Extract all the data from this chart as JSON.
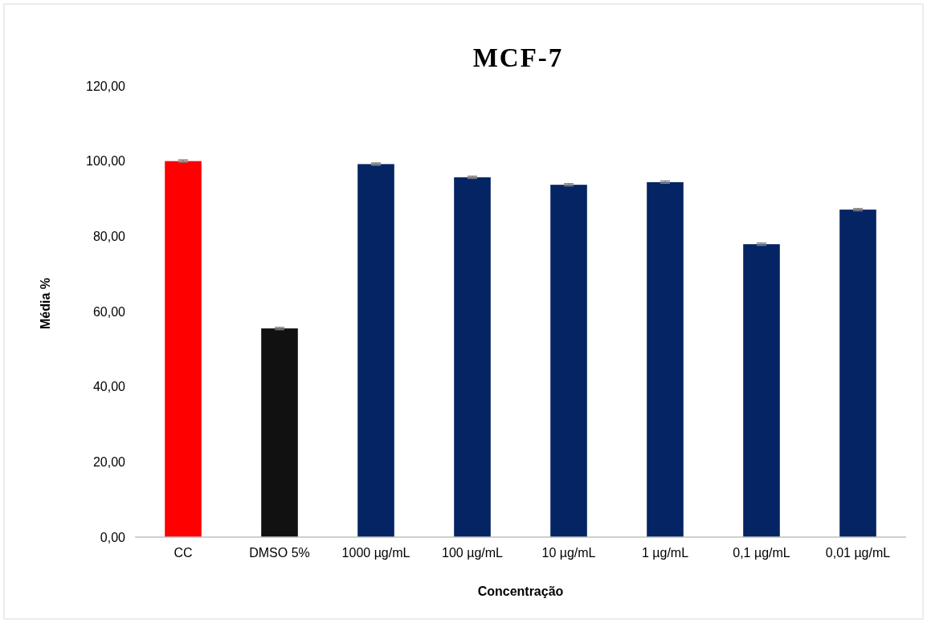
{
  "chart_data": {
    "type": "bar",
    "title": "MCF-7",
    "xlabel": "Concentração",
    "ylabel": "Média %",
    "categories": [
      "CC",
      "DMSO 5%",
      "1000 µg/mL",
      "100 µg/mL",
      "10 µg/mL",
      "1 µg/mL",
      "0,1 µg/mL",
      "0,01 µg/mL"
    ],
    "values": [
      100,
      55.5,
      99.2,
      95.7,
      93.7,
      94.4,
      77.9,
      87.1
    ],
    "errors": [
      0.3,
      0.3,
      0.3,
      0.3,
      0.3,
      0.3,
      0.3,
      0.3
    ],
    "colors": [
      "#ff0000",
      "#111111",
      "#042463",
      "#042463",
      "#042463",
      "#042463",
      "#042463",
      "#042463"
    ],
    "ylim": [
      0,
      120
    ],
    "yticks": [
      {
        "value": 0,
        "label": "0,00"
      },
      {
        "value": 20,
        "label": "20,00"
      },
      {
        "value": 40,
        "label": "40,00"
      },
      {
        "value": 60,
        "label": "60,00"
      },
      {
        "value": 80,
        "label": "80,00"
      },
      {
        "value": 100,
        "label": "100,00"
      },
      {
        "value": 120,
        "label": "120,00"
      }
    ],
    "grid": false
  }
}
